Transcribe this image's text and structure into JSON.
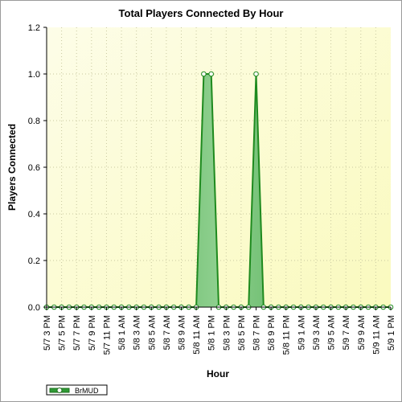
{
  "chart_data": {
    "type": "area",
    "title": "Total Players Connected By Hour",
    "xlabel": "Hour",
    "ylabel": "Players Connected",
    "ylim": [
      0,
      1.2
    ],
    "yticks": [
      "0.0",
      "0.2",
      "0.4",
      "0.6",
      "0.8",
      "1.0",
      "1.2"
    ],
    "grid": true,
    "legend_position": "bottom-left",
    "categories": [
      "5/7 3 PM",
      "5/7 4 PM",
      "5/7 5 PM",
      "5/7 6 PM",
      "5/7 7 PM",
      "5/7 8 PM",
      "5/7 9 PM",
      "5/7 10 PM",
      "5/7 11 PM",
      "5/8 12 AM",
      "5/8 1 AM",
      "5/8 2 AM",
      "5/8 3 AM",
      "5/8 4 AM",
      "5/8 5 AM",
      "5/8 6 AM",
      "5/8 7 AM",
      "5/8 8 AM",
      "5/8 9 AM",
      "5/8 10 AM",
      "5/8 11 AM",
      "5/8 12 PM",
      "5/8 1 PM",
      "5/8 2 PM",
      "5/8 3 PM",
      "5/8 4 PM",
      "5/8 5 PM",
      "5/8 6 PM",
      "5/8 7 PM",
      "5/8 8 PM",
      "5/8 9 PM",
      "5/8 10 PM",
      "5/8 11 PM",
      "5/9 12 AM",
      "5/9 1 AM",
      "5/9 2 AM",
      "5/9 3 AM",
      "5/9 4 AM",
      "5/9 5 AM",
      "5/9 6 AM",
      "5/9 7 AM",
      "5/9 8 AM",
      "5/9 9 AM",
      "5/9 10 AM",
      "5/9 11 AM",
      "5/9 12 PM",
      "5/9 1 PM"
    ],
    "tick_labels": [
      "5/7 3 PM",
      "5/7 5 PM",
      "5/7 7 PM",
      "5/7 9 PM",
      "5/7 11 PM",
      "5/8 1 AM",
      "5/8 3 AM",
      "5/8 5 AM",
      "5/8 7 AM",
      "5/8 9 AM",
      "5/8 11 AM",
      "5/8 1 PM",
      "5/8 3 PM",
      "5/8 5 PM",
      "5/8 7 PM",
      "5/8 9 PM",
      "5/8 11 PM",
      "5/9 1 AM",
      "5/9 3 AM",
      "5/9 5 AM",
      "5/9 7 AM",
      "5/9 9 AM",
      "5/9 11 AM",
      "5/9 1 PM"
    ],
    "series": [
      {
        "name": "BrMUD",
        "color": "#1e8a1e",
        "fill_color": "#4caf50",
        "values": [
          0,
          0,
          0,
          0,
          0,
          0,
          0,
          0,
          0,
          0,
          0,
          0,
          0,
          0,
          0,
          0,
          0,
          0,
          0,
          0,
          0,
          1,
          1,
          0,
          0,
          0,
          0,
          0,
          1,
          0,
          0,
          0,
          0,
          0,
          0,
          0,
          0,
          0,
          0,
          0,
          0,
          0,
          0,
          0,
          0,
          0,
          0
        ]
      }
    ]
  }
}
